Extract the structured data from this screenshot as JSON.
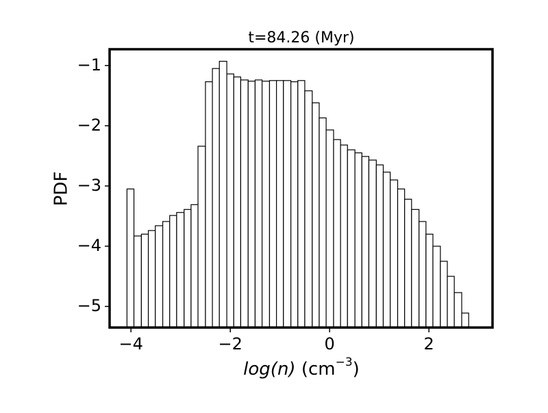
{
  "chart_data": {
    "type": "histogram",
    "title": "t=84.26 (Myr)",
    "x_label_parts": [
      "log(n)",
      " (cm",
      "−3",
      ")"
    ],
    "y_label": "PDF",
    "bins": [
      -4.08,
      -3.94,
      -3.79,
      -3.65,
      -3.51,
      -3.36,
      -3.22,
      -3.08,
      -2.93,
      -2.79,
      -2.65,
      -2.5,
      -2.36,
      -2.22,
      -2.07,
      -1.93,
      -1.79,
      -1.64,
      -1.5,
      -1.36,
      -1.21,
      -1.07,
      -0.93,
      -0.78,
      -0.64,
      -0.5,
      -0.35,
      -0.21,
      -0.07,
      0.08,
      0.22,
      0.36,
      0.51,
      0.65,
      0.79,
      0.94,
      1.08,
      1.22,
      1.37,
      1.51,
      1.65,
      1.8,
      1.94,
      2.08,
      2.23,
      2.37,
      2.51,
      2.66,
      2.8
    ],
    "values": [
      -3.05,
      -3.83,
      -3.8,
      -3.74,
      -3.66,
      -3.59,
      -3.49,
      -3.44,
      -3.39,
      -3.31,
      -2.34,
      -1.27,
      -1.05,
      -0.93,
      -1.14,
      -1.19,
      -1.24,
      -1.26,
      -1.24,
      -1.26,
      -1.25,
      -1.25,
      -1.25,
      -1.27,
      -1.25,
      -1.42,
      -1.62,
      -1.87,
      -2.07,
      -2.23,
      -2.32,
      -2.4,
      -2.45,
      -2.51,
      -2.57,
      -2.65,
      -2.77,
      -2.9,
      -3.05,
      -3.22,
      -3.39,
      -3.59,
      -3.8,
      -4.0,
      -4.25,
      -4.5,
      -4.77,
      -5.11
    ],
    "color": "#ffffff",
    "edge_color": "#000000",
    "xlim": [
      -4.43,
      3.28
    ],
    "xticks": [
      {
        "value": -4,
        "label": "−4"
      },
      {
        "value": -2,
        "label": "−2"
      },
      0,
      2
    ],
    "ylim": [
      -5.35,
      -0.73
    ],
    "yticks": [
      {
        "value": -1,
        "label": "−1"
      },
      {
        "value": -2,
        "label": "−2"
      },
      {
        "value": -3,
        "label": "−3"
      },
      {
        "value": -4,
        "label": "−4"
      },
      {
        "value": -5,
        "label": "−5"
      }
    ],
    "grid": false
  }
}
